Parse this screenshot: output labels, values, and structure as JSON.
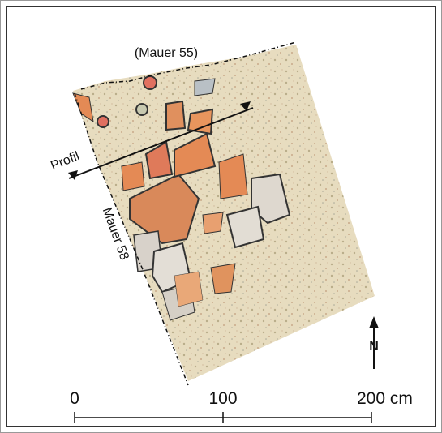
{
  "labels": {
    "wall_north": "(Mauer 55)",
    "profile": "Profil",
    "wall_west": "Mauer 58",
    "north": "N"
  },
  "scale": {
    "ticks": [
      "0",
      "100",
      "200 cm"
    ]
  }
}
